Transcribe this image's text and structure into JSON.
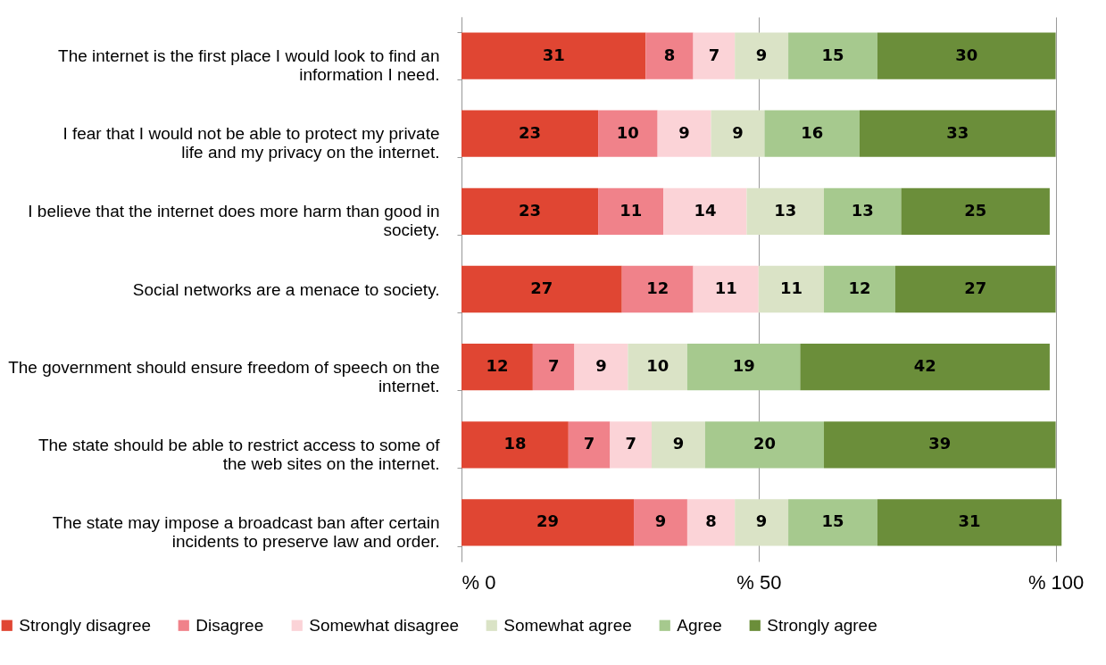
{
  "chart_data": {
    "type": "bar",
    "orientation": "horizontal",
    "stacked": true,
    "data_labels": true,
    "grid": "x",
    "legend": "bottom",
    "categories": [
      "The internet is the first place I would look to find an information I need.",
      "I fear that I would not be able to protect my private life and my privacy on the internet.",
      "I believe that the internet does more harm than good in society.",
      "Social networks are a menace to society.",
      "The government should ensure freedom of speech on the internet.",
      "The state should be able to restrict access to some of the web sites on the internet.",
      "The state may impose a broadcast ban after certain incidents to preserve law and order."
    ],
    "series": [
      {
        "name": "Strongly disagree",
        "color": "#e04633",
        "values": [
          31,
          23,
          23,
          27,
          12,
          18,
          29
        ]
      },
      {
        "name": "Disagree",
        "color": "#f0828a",
        "values": [
          8,
          10,
          11,
          12,
          7,
          7,
          9
        ]
      },
      {
        "name": "Somewhat disagree",
        "color": "#fbd3d7",
        "values": [
          7,
          9,
          14,
          11,
          9,
          7,
          8
        ]
      },
      {
        "name": "Somewhat agree",
        "color": "#dae3c6",
        "values": [
          9,
          9,
          13,
          11,
          10,
          9,
          9
        ]
      },
      {
        "name": "Agree",
        "color": "#a6c98e",
        "values": [
          15,
          16,
          13,
          12,
          19,
          20,
          15
        ]
      },
      {
        "name": "Strongly agree",
        "color": "#6b8e3a",
        "values": [
          30,
          33,
          25,
          27,
          42,
          39,
          31
        ]
      }
    ],
    "xlim": [
      0,
      101
    ],
    "xticks": [
      {
        "value": 0,
        "label": "% 0"
      },
      {
        "value": 50,
        "label": "% 50"
      },
      {
        "value": 100,
        "label": "% 100"
      }
    ]
  }
}
